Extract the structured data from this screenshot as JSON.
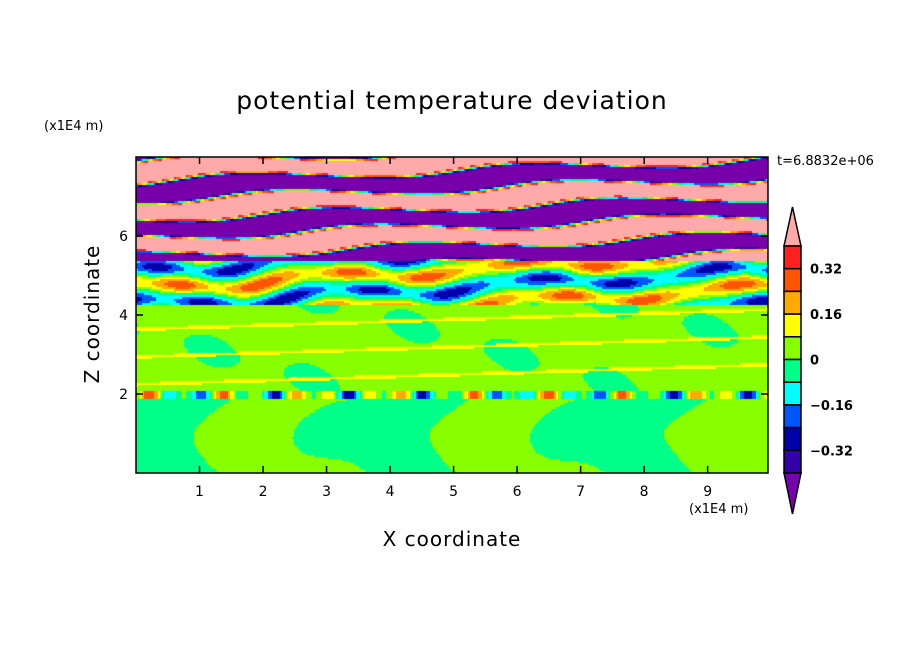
{
  "chart_data": {
    "type": "heatmap",
    "title": "potential temperature deviation",
    "xlabel": "X coordinate",
    "ylabel": "Z coordinate",
    "x_unit": "(x1E4 m)",
    "y_unit": "(x1E4 m)",
    "time_label": "t=6.8832e+06",
    "xlim": [
      0,
      9.95
    ],
    "ylim": [
      0,
      8
    ],
    "xticks": [
      1,
      2,
      3,
      4,
      5,
      6,
      7,
      8,
      9
    ],
    "yticks": [
      2,
      4,
      6
    ],
    "colorbar": {
      "levels": [
        0.4,
        0.32,
        0.24,
        0.16,
        0.08,
        0,
        -0.08,
        -0.16,
        -0.24,
        -0.32,
        -0.4
      ],
      "labels": [
        "0.32",
        "0.16",
        "0",
        "−0.16",
        "−0.32"
      ],
      "label_values": [
        0.32,
        0.16,
        0,
        -0.16,
        -0.32
      ],
      "colors": [
        "#ffaaaa",
        "#ff2020",
        "#ff5500",
        "#ffaa00",
        "#ffff00",
        "#88ff00",
        "#00ff88",
        "#00ffff",
        "#0055ff",
        "#0000aa",
        "#3300aa",
        "#7700aa"
      ],
      "extend": "both"
    }
  }
}
